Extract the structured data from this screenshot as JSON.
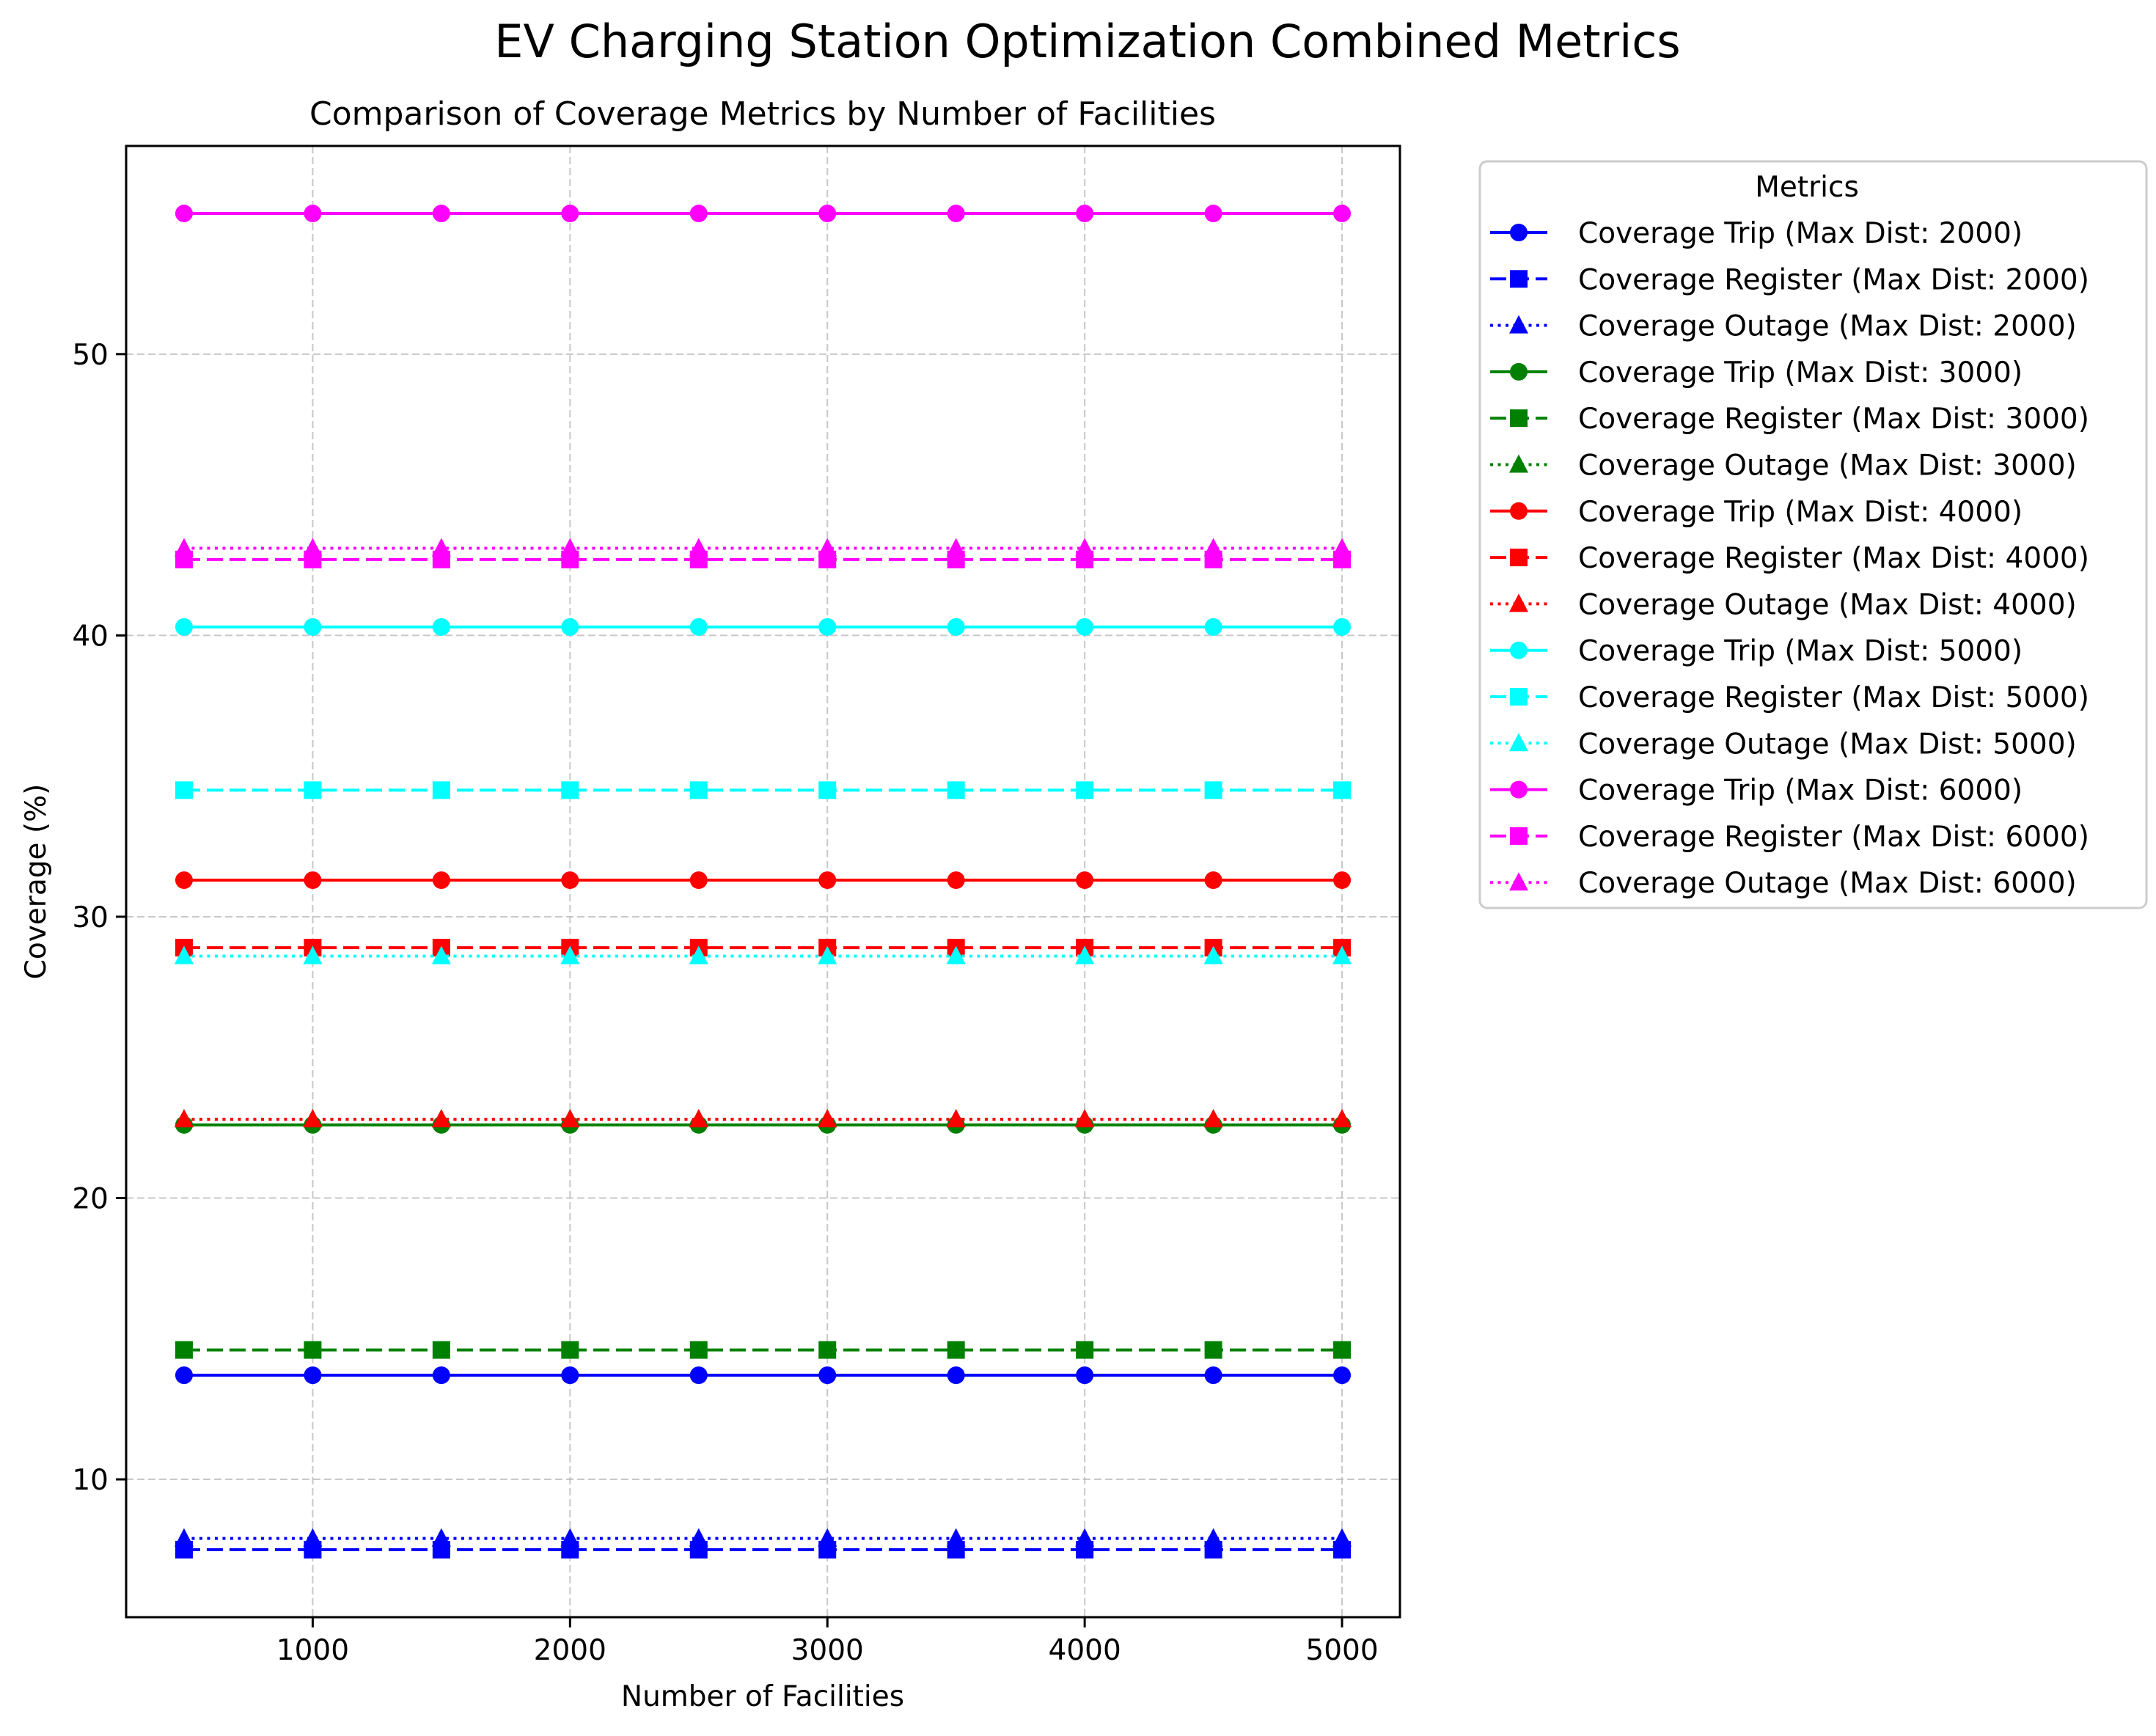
{
  "figure": {
    "suptitle": "EV Charging Station Optimization Combined Metrics"
  },
  "chart_data": {
    "type": "line",
    "title": "Comparison of Coverage Metrics by Number of Facilities",
    "xlabel": "Number of Facilities",
    "ylabel": "Coverage (%)",
    "xlim": [
      275,
      5225
    ],
    "ylim": [
      5.1,
      57.4
    ],
    "x_ticks": [
      1000,
      2000,
      3000,
      4000,
      5000
    ],
    "y_ticks": [
      10,
      20,
      30,
      40,
      50
    ],
    "grid": true,
    "legend": {
      "title": "Metrics",
      "placement": "outside-right"
    },
    "x": [
      500,
      1000,
      1500,
      2000,
      2500,
      3000,
      3500,
      4000,
      4500,
      5000
    ],
    "series": [
      {
        "name": "Coverage Trip (Max Dist: 2000)",
        "color": "#0000ff",
        "line": "solid",
        "marker": "circle",
        "value": 13.7
      },
      {
        "name": "Coverage Register (Max Dist: 2000)",
        "color": "#0000ff",
        "line": "dashed",
        "marker": "square",
        "value": 7.5
      },
      {
        "name": "Coverage Outage (Max Dist: 2000)",
        "color": "#0000ff",
        "line": "dotted",
        "marker": "triangle",
        "value": 7.9
      },
      {
        "name": "Coverage Trip (Max Dist: 3000)",
        "color": "#008000",
        "line": "solid",
        "marker": "circle",
        "value": 22.6
      },
      {
        "name": "Coverage Register (Max Dist: 3000)",
        "color": "#008000",
        "line": "dashed",
        "marker": "square",
        "value": 14.6
      },
      {
        "name": "Coverage Outage (Max Dist: 3000)",
        "color": "#008000",
        "line": "dotted",
        "marker": "triangle",
        "value": 22.8
      },
      {
        "name": "Coverage Trip (Max Dist: 4000)",
        "color": "#ff0000",
        "line": "solid",
        "marker": "circle",
        "value": 31.3
      },
      {
        "name": "Coverage Register (Max Dist: 4000)",
        "color": "#ff0000",
        "line": "dashed",
        "marker": "square",
        "value": 28.9
      },
      {
        "name": "Coverage Outage (Max Dist: 4000)",
        "color": "#ff0000",
        "line": "dotted",
        "marker": "triangle",
        "value": 22.8
      },
      {
        "name": "Coverage Trip (Max Dist: 5000)",
        "color": "#00ffff",
        "line": "solid",
        "marker": "circle",
        "value": 40.3
      },
      {
        "name": "Coverage Register (Max Dist: 5000)",
        "color": "#00ffff",
        "line": "dashed",
        "marker": "square",
        "value": 34.5
      },
      {
        "name": "Coverage Outage (Max Dist: 5000)",
        "color": "#00ffff",
        "line": "dotted",
        "marker": "triangle",
        "value": 28.6
      },
      {
        "name": "Coverage Trip (Max Dist: 6000)",
        "color": "#ff00ff",
        "line": "solid",
        "marker": "circle",
        "value": 55.0
      },
      {
        "name": "Coverage Register (Max Dist: 6000)",
        "color": "#ff00ff",
        "line": "dashed",
        "marker": "square",
        "value": 42.7
      },
      {
        "name": "Coverage Outage (Max Dist: 6000)",
        "color": "#ff00ff",
        "line": "dotted",
        "marker": "triangle",
        "value": 43.1
      }
    ]
  }
}
